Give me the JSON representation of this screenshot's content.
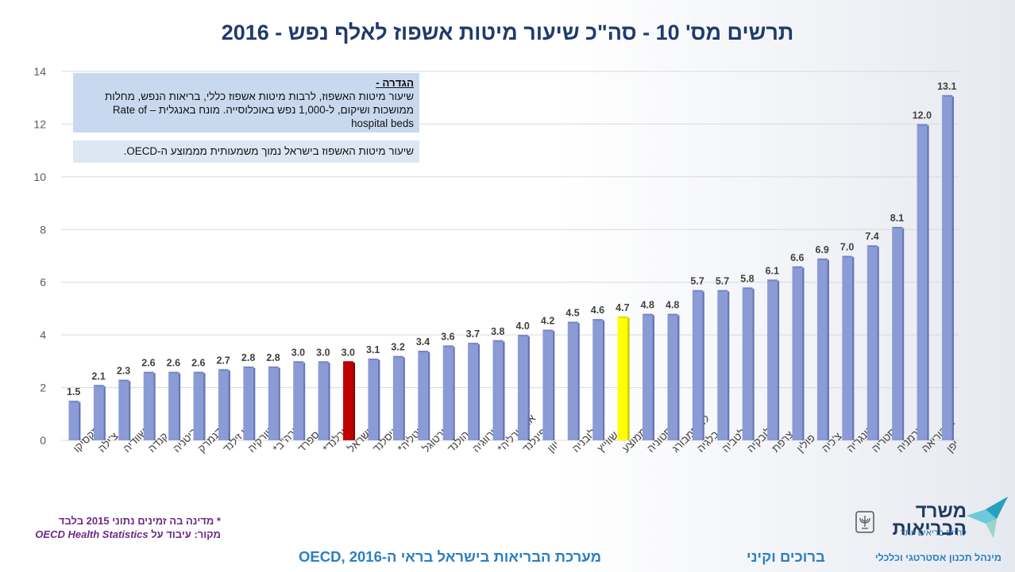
{
  "title": "תרשים מס' 10 - סה\"כ שיעור מיטות אשפוז לאלף נפש - 2016",
  "definition": {
    "heading": "הגדרה -",
    "text": "שיעור מיטות האשפוז, לרבות מיטות אשפוז כללי, בריאות הנפש, מחלות ממושכות ושיקום, ל-1,000 נפש באוכלוסייה. מונח באנגלית – Rate of hospital beds"
  },
  "note": "שיעור מיטות האשפוז בישראל נמוך משמעותית מממוצע ה-OECD.",
  "footnote": {
    "line1": "*  מדינה בה זמינים נתוני 2015 בלבד",
    "line2_prefix": "מקור: עיבוד על ",
    "line2_source": "OECD Health Statistics"
  },
  "bottom": {
    "center": "מערכת הבריאות בישראל בראי ה-OECD, 2016",
    "right": "ברוכים וקיני"
  },
  "logo": {
    "name_line1": "משרד",
    "name_line2": "הבריאות",
    "tagline": "לחיים בריאים יותר",
    "division": "מינהל תכנון אסטרטגי וכלכלי",
    "emblem_icon": "menorah-emblem-icon",
    "bird_icon": "bird-logo-icon"
  },
  "colors": {
    "bar_default": "#8a9bd6",
    "bar_israel": "#c00000",
    "bar_average": "#ffff00",
    "title": "#1f3a6e",
    "footer": "#2b7fc2",
    "footnote": "#6b2a86"
  },
  "chart_data": {
    "type": "bar",
    "categories": [
      "מקסיקו",
      "צ'ילה",
      "שוודיה",
      "קנדה",
      "בריטניה",
      "דנמרק",
      "ניו זילנד",
      "טורקיה",
      "ארה\"ב*",
      "ספרד",
      "אירלנד*",
      "ישראל",
      "איסלנד",
      "איטליה*",
      "פורטוגל",
      "הולנד",
      "נורווגיה",
      "אוסטרליה*",
      "פינלנד",
      "יוון",
      "סלובניה",
      "שווייץ",
      "ממוצע",
      "אסטוניה",
      "לוקסמבורג",
      "בלגיה",
      "לטביה",
      "סלובקיה",
      "צרפת",
      "פולין",
      "צ'כיה",
      "הונגריה",
      "אוסטריה",
      "גרמניה",
      "ד' קוריאה",
      "יפן"
    ],
    "values": [
      1.5,
      2.1,
      2.3,
      2.6,
      2.6,
      2.6,
      2.7,
      2.8,
      2.8,
      3.0,
      3.0,
      3.0,
      3.1,
      3.2,
      3.4,
      3.6,
      3.7,
      3.8,
      4.0,
      4.2,
      4.5,
      4.6,
      4.7,
      4.8,
      4.8,
      5.7,
      5.7,
      5.8,
      6.1,
      6.6,
      6.9,
      7.0,
      7.4,
      8.1,
      12.0,
      13.1
    ],
    "value_labels": [
      "1.5",
      "2.1",
      "2.3",
      "2.6",
      "2.6",
      "2.6",
      "2.7",
      "2.8",
      "2.8",
      "3.0",
      "3.0",
      "3.0",
      "3.1",
      "3.2",
      "3.4",
      "3.6",
      "3.7",
      "3.8",
      "4.0",
      "4.2",
      "4.5",
      "4.6",
      "4.7",
      "4.8",
      "4.8",
      "5.7",
      "5.7",
      "5.8",
      "6.1",
      "6.6",
      "6.9",
      "7.0",
      "7.4",
      "8.1",
      "12.0",
      "13.1"
    ],
    "highlight": {
      "ישראל": "israel",
      "ממוצע": "average"
    },
    "ylim": [
      0,
      14
    ],
    "yticks": [
      0,
      2,
      4,
      6,
      8,
      10,
      12,
      14
    ],
    "grid": true,
    "xlabel": "",
    "ylabel": ""
  }
}
